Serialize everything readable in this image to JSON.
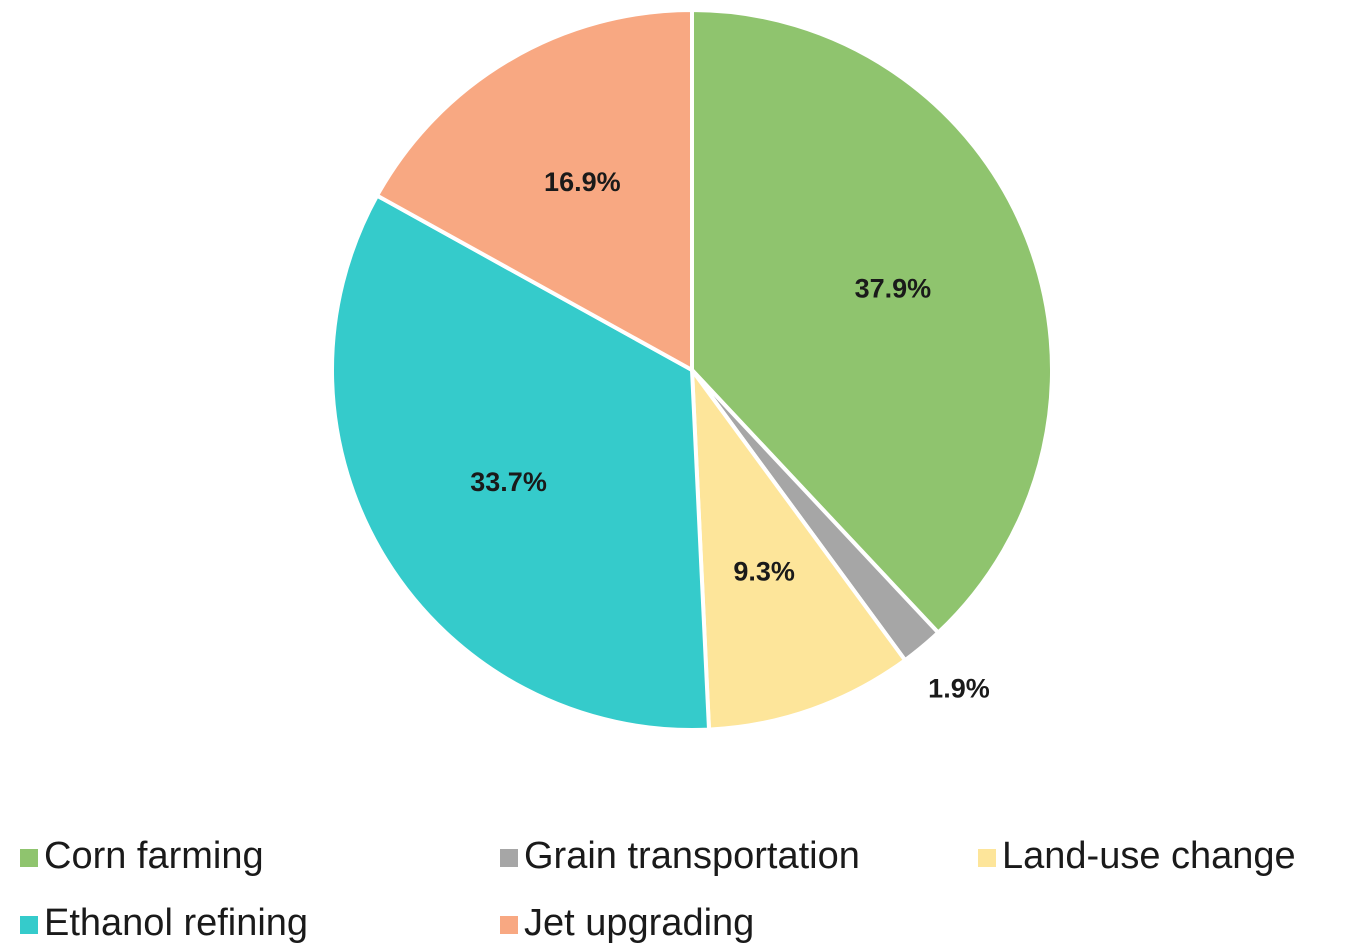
{
  "chart_data": {
    "type": "pie",
    "categories": [
      "Corn farming",
      "Grain transportation",
      "Land-use change",
      "Ethanol refining",
      "Jet upgrading"
    ],
    "values": [
      37.9,
      1.9,
      9.3,
      33.7,
      16.9
    ],
    "value_labels": [
      "37.9%",
      "1.9%",
      "9.3%",
      "33.7%",
      "16.9%"
    ],
    "colors": [
      "#8fc46e",
      "#a6a6a6",
      "#fde59a",
      "#35cbcb",
      "#f8a882"
    ]
  }
}
